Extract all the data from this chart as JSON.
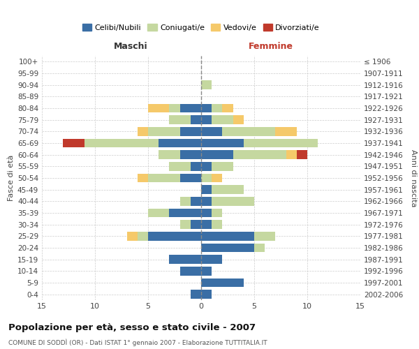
{
  "age_groups": [
    "0-4",
    "5-9",
    "10-14",
    "15-19",
    "20-24",
    "25-29",
    "30-34",
    "35-39",
    "40-44",
    "45-49",
    "50-54",
    "55-59",
    "60-64",
    "65-69",
    "70-74",
    "75-79",
    "80-84",
    "85-89",
    "90-94",
    "95-99",
    "100+"
  ],
  "birth_years": [
    "2002-2006",
    "1997-2001",
    "1992-1996",
    "1987-1991",
    "1982-1986",
    "1977-1981",
    "1972-1976",
    "1967-1971",
    "1962-1966",
    "1957-1961",
    "1952-1956",
    "1947-1951",
    "1942-1946",
    "1937-1941",
    "1932-1936",
    "1927-1931",
    "1922-1926",
    "1917-1921",
    "1912-1916",
    "1907-1911",
    "≤ 1906"
  ],
  "males": {
    "celibe": [
      1,
      0,
      2,
      3,
      0,
      5,
      1,
      3,
      1,
      0,
      2,
      1,
      2,
      4,
      2,
      1,
      2,
      0,
      0,
      0,
      0
    ],
    "coniugato": [
      0,
      0,
      0,
      0,
      0,
      1,
      1,
      2,
      1,
      0,
      3,
      2,
      2,
      7,
      3,
      2,
      1,
      0,
      0,
      0,
      0
    ],
    "vedovo": [
      0,
      0,
      0,
      0,
      0,
      1,
      0,
      0,
      0,
      0,
      1,
      0,
      0,
      0,
      1,
      0,
      2,
      0,
      0,
      0,
      0
    ],
    "divorziato": [
      0,
      0,
      0,
      0,
      0,
      0,
      0,
      0,
      0,
      0,
      0,
      0,
      0,
      2,
      0,
      0,
      0,
      0,
      0,
      0,
      0
    ]
  },
  "females": {
    "nubile": [
      1,
      4,
      1,
      2,
      5,
      5,
      1,
      1,
      1,
      1,
      0,
      1,
      3,
      4,
      2,
      1,
      1,
      0,
      0,
      0,
      0
    ],
    "coniugata": [
      0,
      0,
      0,
      0,
      1,
      2,
      1,
      1,
      4,
      3,
      1,
      2,
      5,
      7,
      5,
      2,
      1,
      0,
      1,
      0,
      0
    ],
    "vedova": [
      0,
      0,
      0,
      0,
      0,
      0,
      0,
      0,
      0,
      0,
      1,
      0,
      1,
      0,
      2,
      1,
      1,
      0,
      0,
      0,
      0
    ],
    "divorziata": [
      0,
      0,
      0,
      0,
      0,
      0,
      0,
      0,
      0,
      0,
      0,
      0,
      1,
      0,
      0,
      0,
      0,
      0,
      0,
      0,
      0
    ]
  },
  "colors": {
    "celibe": "#3a6ea5",
    "coniugato": "#c5d8a0",
    "vedovo": "#f5c96a",
    "divorziato": "#c0392b"
  },
  "xlim": 15,
  "title": "Popolazione per età, sesso e stato civile - 2007",
  "subtitle": "COMUNE DI SODDÌ (OR) - Dati ISTAT 1° gennaio 2007 - Elaborazione TUTTITALIA.IT",
  "ylabel_left": "Fasce di età",
  "ylabel_right": "Anni di nascita",
  "xlabel_left": "Maschi",
  "xlabel_right": "Femmine",
  "legend_labels": [
    "Celibi/Nubili",
    "Coniugati/e",
    "Vedovi/e",
    "Divorziati/e"
  ],
  "bg_color": "#ffffff",
  "grid_color": "#cccccc"
}
